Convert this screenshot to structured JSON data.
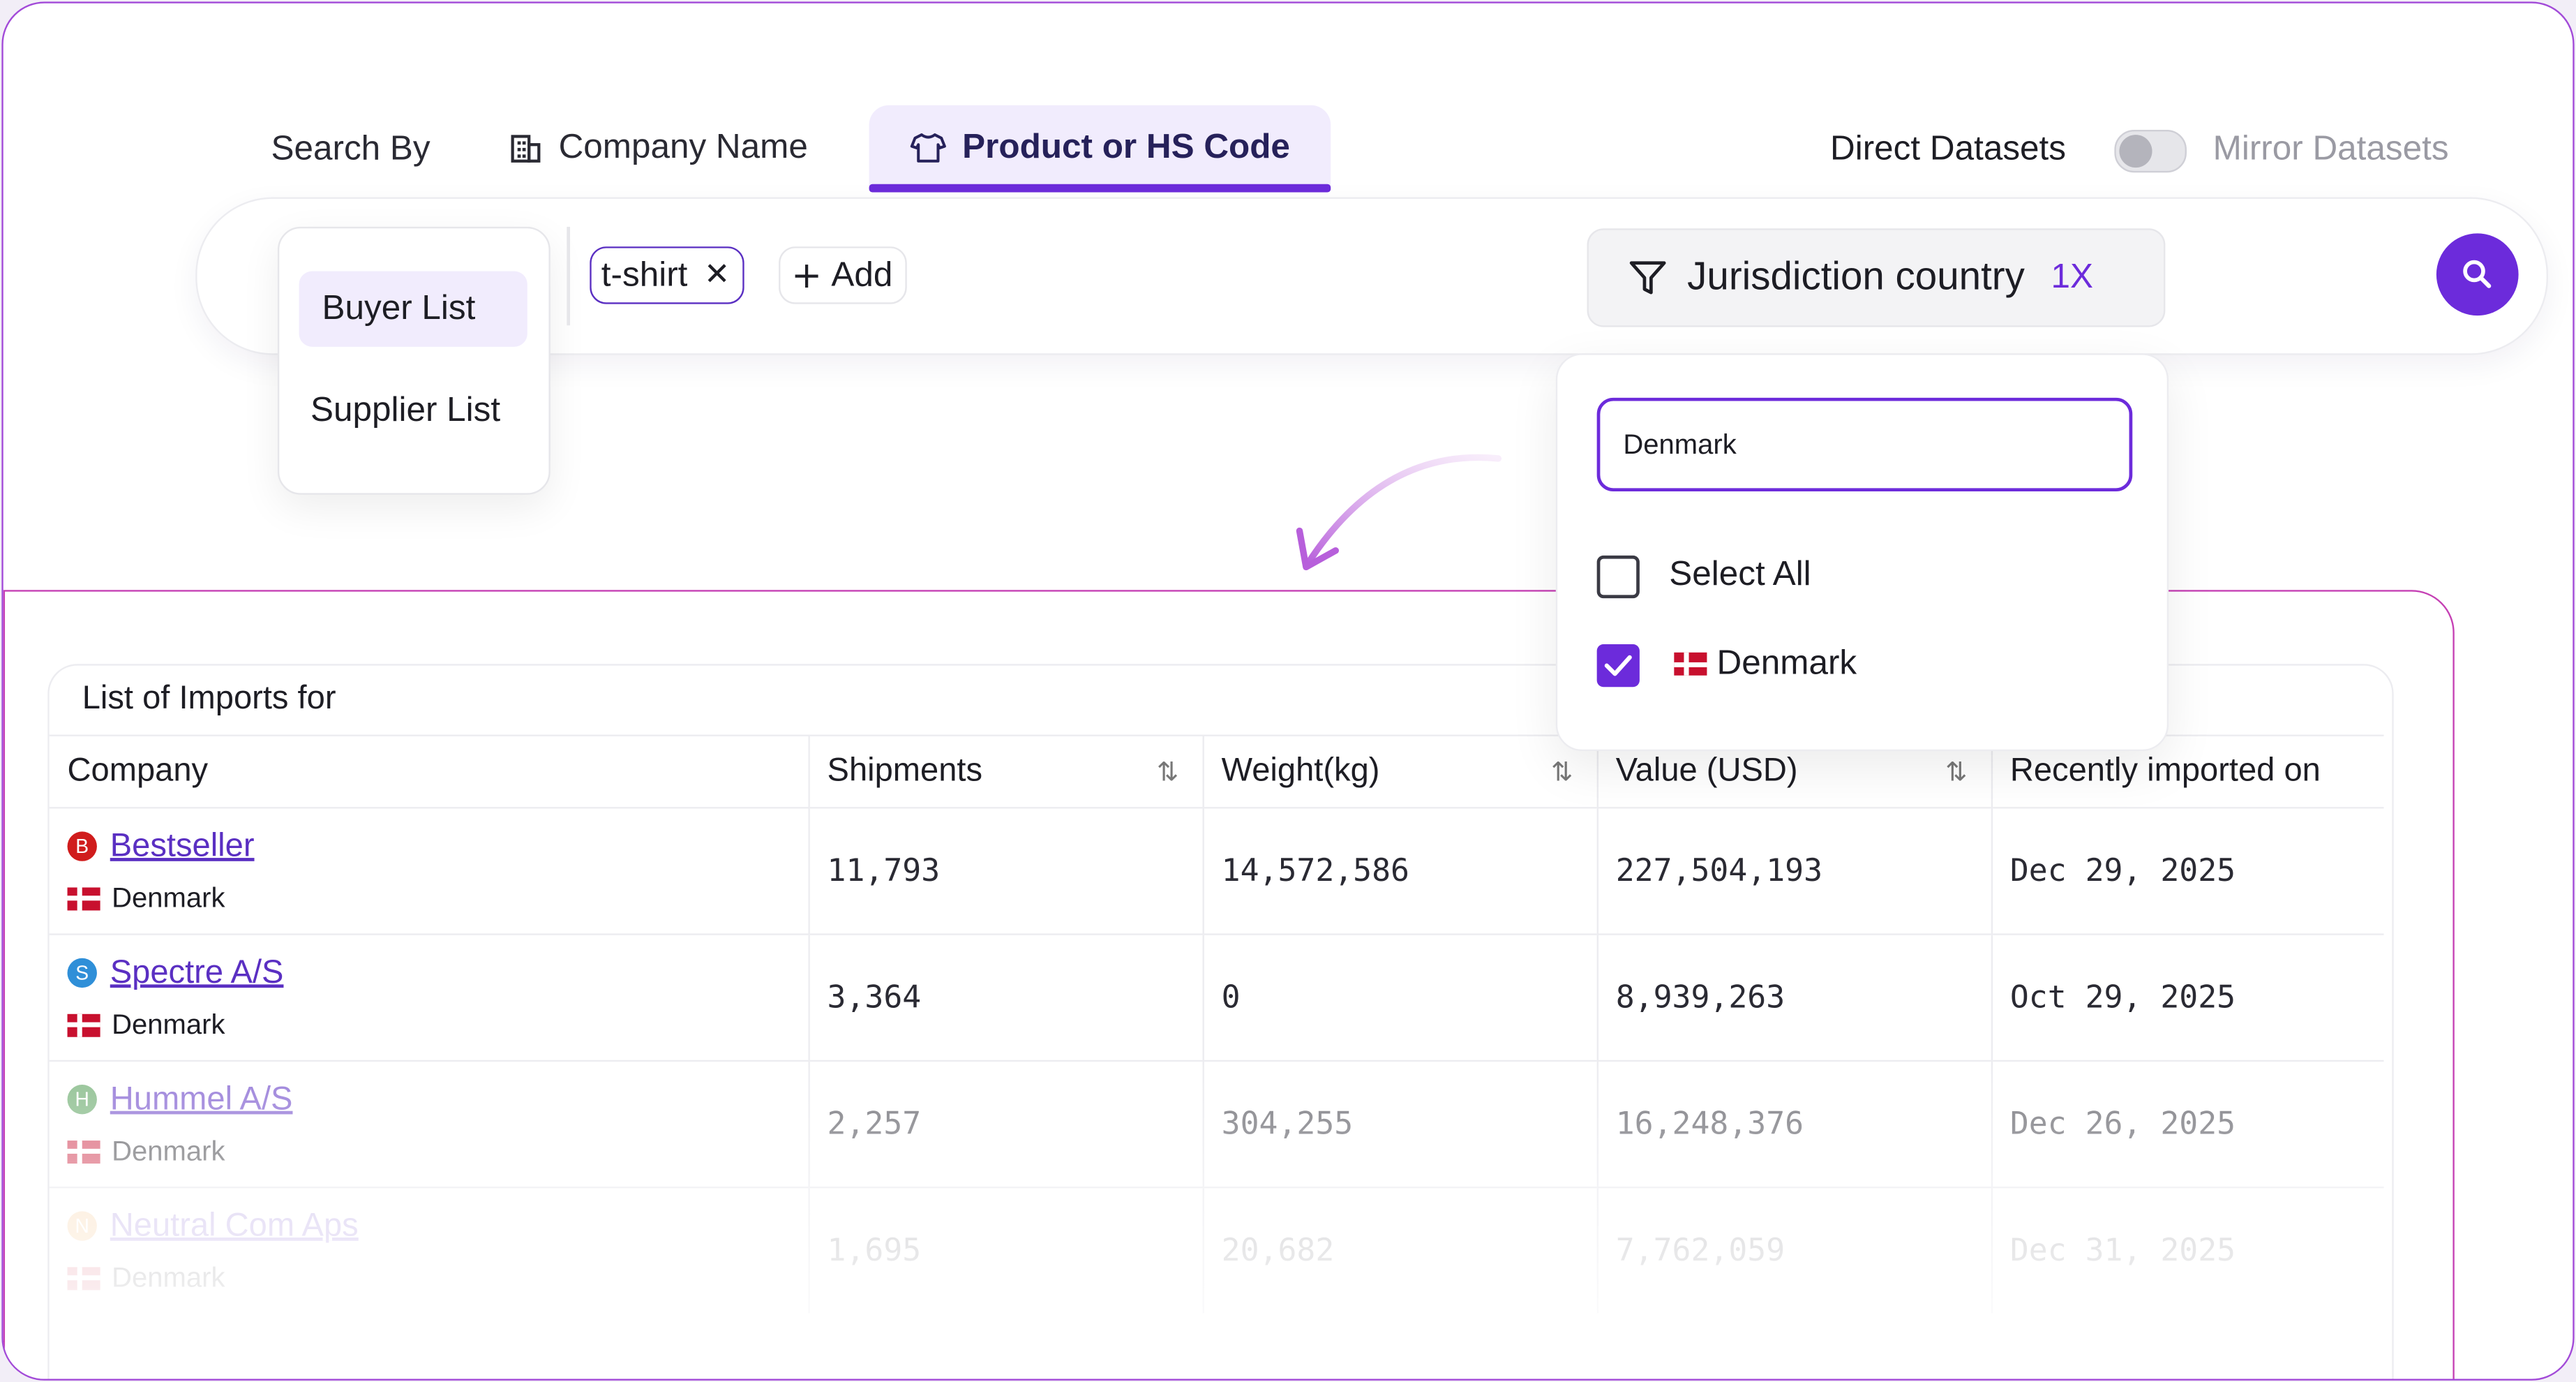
{
  "search": {
    "search_by_label": "Search By",
    "tabs": [
      {
        "label": "Company Name",
        "icon": "building-icon",
        "active": false
      },
      {
        "label": "Product or HS Code",
        "icon": "tshirt-icon",
        "active": true
      }
    ],
    "dataset_toggle": {
      "left_label": "Direct Datasets",
      "right_label": "Mirror Datasets",
      "state": "direct"
    },
    "list_options": [
      "Buyer List",
      "Supplier List"
    ],
    "selected_list": "Buyer List",
    "chips": [
      "t-shirt"
    ],
    "add_label": "Add",
    "filter": {
      "label": "Jurisdiction country",
      "count": "1X"
    }
  },
  "dropdown": {
    "input_value": "Denmark",
    "select_all_label": "Select All",
    "options": [
      {
        "label": "Denmark",
        "checked": true
      }
    ]
  },
  "table": {
    "title": "List of Imports for",
    "columns": [
      "Company",
      "Shipments",
      "Weight(kg)",
      "Value (USD)",
      "Recently imported on"
    ],
    "rows": [
      {
        "initial": "B",
        "name": "Bestseller",
        "country": "Denmark",
        "shipments": "11,793",
        "weight": "14,572,586",
        "value": "227,504,193",
        "date": "Dec 29, 2025",
        "badge_color": "#d01c1c"
      },
      {
        "initial": "S",
        "name": "Spectre A/S",
        "country": "Denmark",
        "shipments": "3,364",
        "weight": "0",
        "value": "8,939,263",
        "date": "Oct 29, 2025",
        "badge_color": "#2f8fd8"
      },
      {
        "initial": "H",
        "name": "Hummel A/S",
        "country": "Denmark",
        "shipments": "2,257",
        "weight": "304,255",
        "value": "16,248,376",
        "date": "Dec 26, 2025",
        "badge_color": "#4c9a4f"
      },
      {
        "initial": "N",
        "name": "Neutral Com Aps",
        "country": "Denmark",
        "shipments": "1,695",
        "weight": "20,682",
        "value": "7,762,059",
        "date": "Dec 31, 2025",
        "badge_color": "#f0a040"
      }
    ]
  },
  "colors": {
    "accent": "#6c2bdb",
    "border_accent": "#c540b4",
    "flag_red": "#c8102e"
  }
}
